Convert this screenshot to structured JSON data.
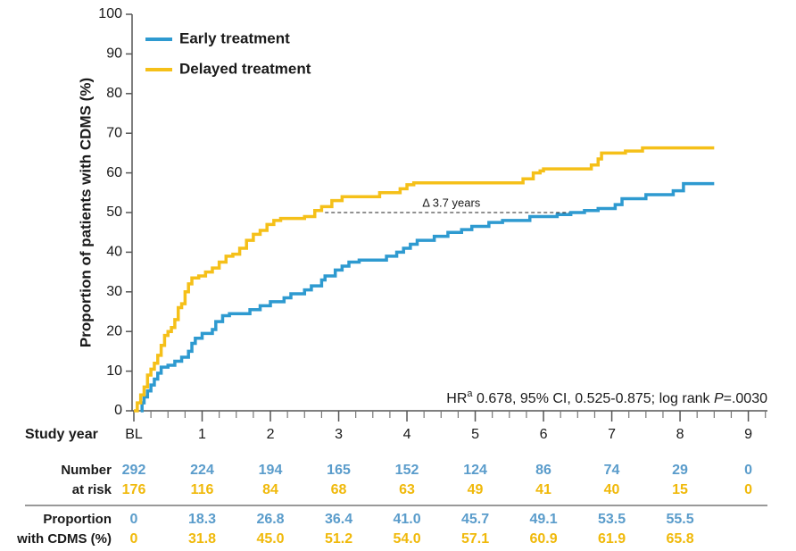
{
  "chart_data": {
    "type": "km",
    "y_label": "Proportion of patients with CDMS (%)",
    "xlim": [
      0,
      9.28
    ],
    "ylim": [
      0,
      100
    ],
    "yticks": [
      0,
      10,
      20,
      30,
      40,
      50,
      60,
      70,
      80,
      90,
      100
    ],
    "xticks": [
      {
        "value": 0,
        "label": "BL"
      },
      1,
      2,
      3,
      4,
      5,
      6,
      7,
      8,
      9
    ],
    "x_minor_ticks": [
      0.25,
      0.5,
      0.75,
      1.25,
      1.5,
      1.75,
      2.25,
      2.5,
      2.75,
      3.25,
      3.5,
      3.75,
      4.25,
      4.5,
      4.75,
      5.25,
      5.5,
      5.75,
      6.25,
      6.5,
      6.75,
      7.25,
      7.5,
      7.75,
      8.25,
      8.5,
      8.75,
      9.25
    ],
    "step": true,
    "legend": "top-left",
    "series": [
      {
        "name": "Early treatment",
        "color": "#2e9ad0",
        "x": [
          0.1,
          0.12,
          0.15,
          0.2,
          0.25,
          0.3,
          0.35,
          0.4,
          0.5,
          0.6,
          0.7,
          0.8,
          0.85,
          0.9,
          1.0,
          1.15,
          1.2,
          1.3,
          1.4,
          1.7,
          1.85,
          2.0,
          2.2,
          2.3,
          2.5,
          2.6,
          2.75,
          2.8,
          2.95,
          3.05,
          3.15,
          3.3,
          3.7,
          3.85,
          3.95,
          4.05,
          4.15,
          4.4,
          4.6,
          4.8,
          4.95,
          5.2,
          5.4,
          5.8,
          6.2,
          6.4,
          6.6,
          6.8,
          7.05,
          7.15,
          7.5,
          7.9,
          8.05,
          8.5
        ],
        "values": [
          0,
          2,
          3.5,
          5,
          6.5,
          8,
          9.5,
          11,
          11.5,
          12.5,
          13.5,
          15,
          17,
          18.3,
          19.5,
          20.5,
          22.5,
          24,
          24.5,
          25.5,
          26.5,
          27.5,
          28.5,
          29.5,
          30.5,
          31.5,
          33,
          34,
          35.5,
          36.5,
          37.5,
          38,
          39,
          40,
          41,
          42,
          43,
          44,
          45,
          45.7,
          46.5,
          47.5,
          48,
          49,
          49.5,
          50,
          50.5,
          51,
          52,
          53.5,
          54.5,
          55.5,
          57.3,
          57.3
        ]
      },
      {
        "name": "Delayed treatment",
        "color": "#f5c019",
        "x": [
          0,
          0.05,
          0.1,
          0.15,
          0.2,
          0.25,
          0.3,
          0.35,
          0.4,
          0.45,
          0.5,
          0.55,
          0.6,
          0.65,
          0.7,
          0.75,
          0.8,
          0.85,
          0.95,
          1.05,
          1.15,
          1.25,
          1.35,
          1.45,
          1.55,
          1.65,
          1.75,
          1.85,
          1.95,
          2.05,
          2.15,
          2.5,
          2.65,
          2.75,
          2.9,
          3.05,
          3.6,
          3.9,
          4.0,
          4.1,
          5.7,
          5.85,
          5.95,
          6.0,
          6.7,
          6.8,
          6.85,
          7.2,
          7.45,
          8.5
        ],
        "values": [
          0,
          2,
          4,
          6,
          9,
          10.5,
          12,
          14,
          16.5,
          19,
          20,
          21,
          23,
          26,
          27,
          30,
          32,
          33.5,
          34,
          35,
          36,
          37.5,
          39,
          39.5,
          41,
          43,
          44.5,
          45.5,
          47,
          48,
          48.5,
          49,
          50.5,
          51.5,
          53,
          54,
          55,
          56,
          57,
          57.5,
          58.5,
          60,
          60.5,
          61,
          62,
          63.5,
          65,
          65.5,
          66.3,
          66.3
        ]
      }
    ],
    "annotation": {
      "text": "Δ 3.7 years",
      "x": [
        2.8,
        6.5
      ],
      "y": 50
    },
    "hr_text": [
      "HR",
      "a",
      " 0.678, 95% CI, 0.525-0.875; log rank ",
      "P",
      "=.0030"
    ],
    "table": {
      "x_label": "Study year",
      "at_risk_label": [
        "Number",
        "at risk"
      ],
      "at_risk": [
        [
          292,
          224,
          194,
          165,
          152,
          124,
          86,
          74,
          29,
          0
        ],
        [
          176,
          116,
          84,
          68,
          63,
          49,
          41,
          40,
          15,
          0
        ]
      ],
      "proportion_label": [
        "Proportion",
        "with CDMS (%)"
      ],
      "proportion": [
        [
          "0",
          "18.3",
          "26.8",
          "36.4",
          "41.0",
          "45.7",
          "49.1",
          "53.5",
          "55.5"
        ],
        [
          "0",
          "31.8",
          "45.0",
          "51.2",
          "54.0",
          "57.1",
          "60.9",
          "61.9",
          "65.8"
        ]
      ],
      "row_colors": [
        "#5a9ccb",
        "#f0b90b"
      ]
    }
  }
}
